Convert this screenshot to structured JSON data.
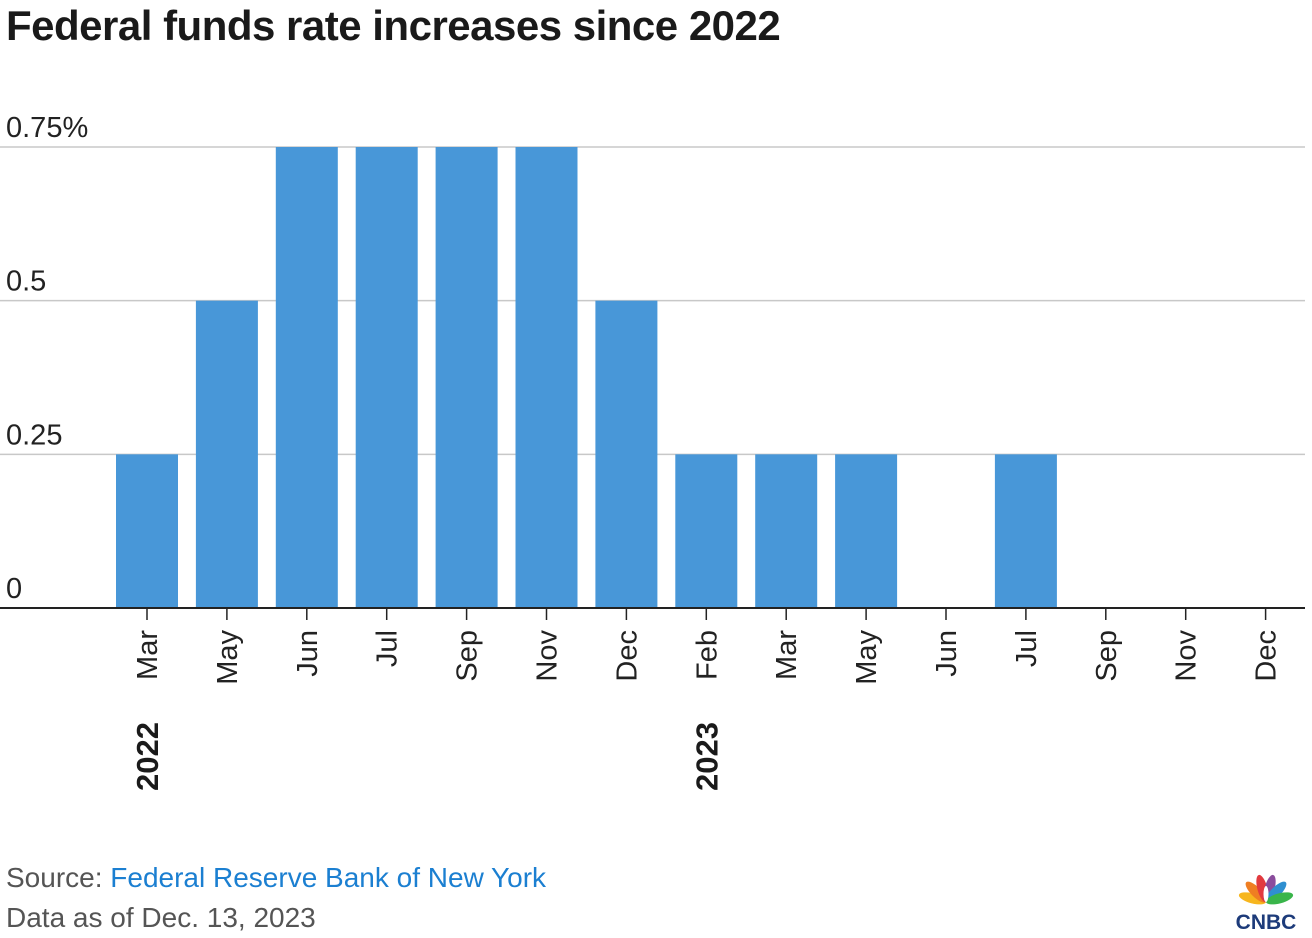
{
  "header": {
    "title": "Federal funds rate increases since 2022"
  },
  "chart_data": {
    "type": "bar",
    "title": "Federal funds rate increases since 2022",
    "xlabel": "",
    "ylabel": "",
    "ylim": [
      0,
      0.75
    ],
    "yticks": [
      0,
      0.25,
      0.5,
      0.75
    ],
    "ytick_labels": [
      "0",
      "0.25",
      "0.5",
      "0.75%"
    ],
    "grid": true,
    "categories": [
      "Mar",
      "May",
      "Jun",
      "Jul",
      "Sep",
      "Nov",
      "Dec",
      "Feb",
      "Mar",
      "May",
      "Jun",
      "Jul",
      "Sep",
      "Nov",
      "Dec"
    ],
    "values": [
      0.25,
      0.5,
      0.75,
      0.75,
      0.75,
      0.75,
      0.5,
      0.25,
      0.25,
      0.25,
      0,
      0.25,
      0,
      0,
      0
    ],
    "year_labels": [
      {
        "label": "2022",
        "category_index": 0
      },
      {
        "label": "2023",
        "category_index": 7
      }
    ],
    "bar_color": "#4897d8"
  },
  "footer": {
    "source_prefix": "Source: ",
    "source_name": "Federal Reserve Bank of New York",
    "data_note": "Data as of Dec. 13, 2023"
  },
  "logo": {
    "text": "CNBC",
    "icon": "cnbc-peacock-icon"
  }
}
